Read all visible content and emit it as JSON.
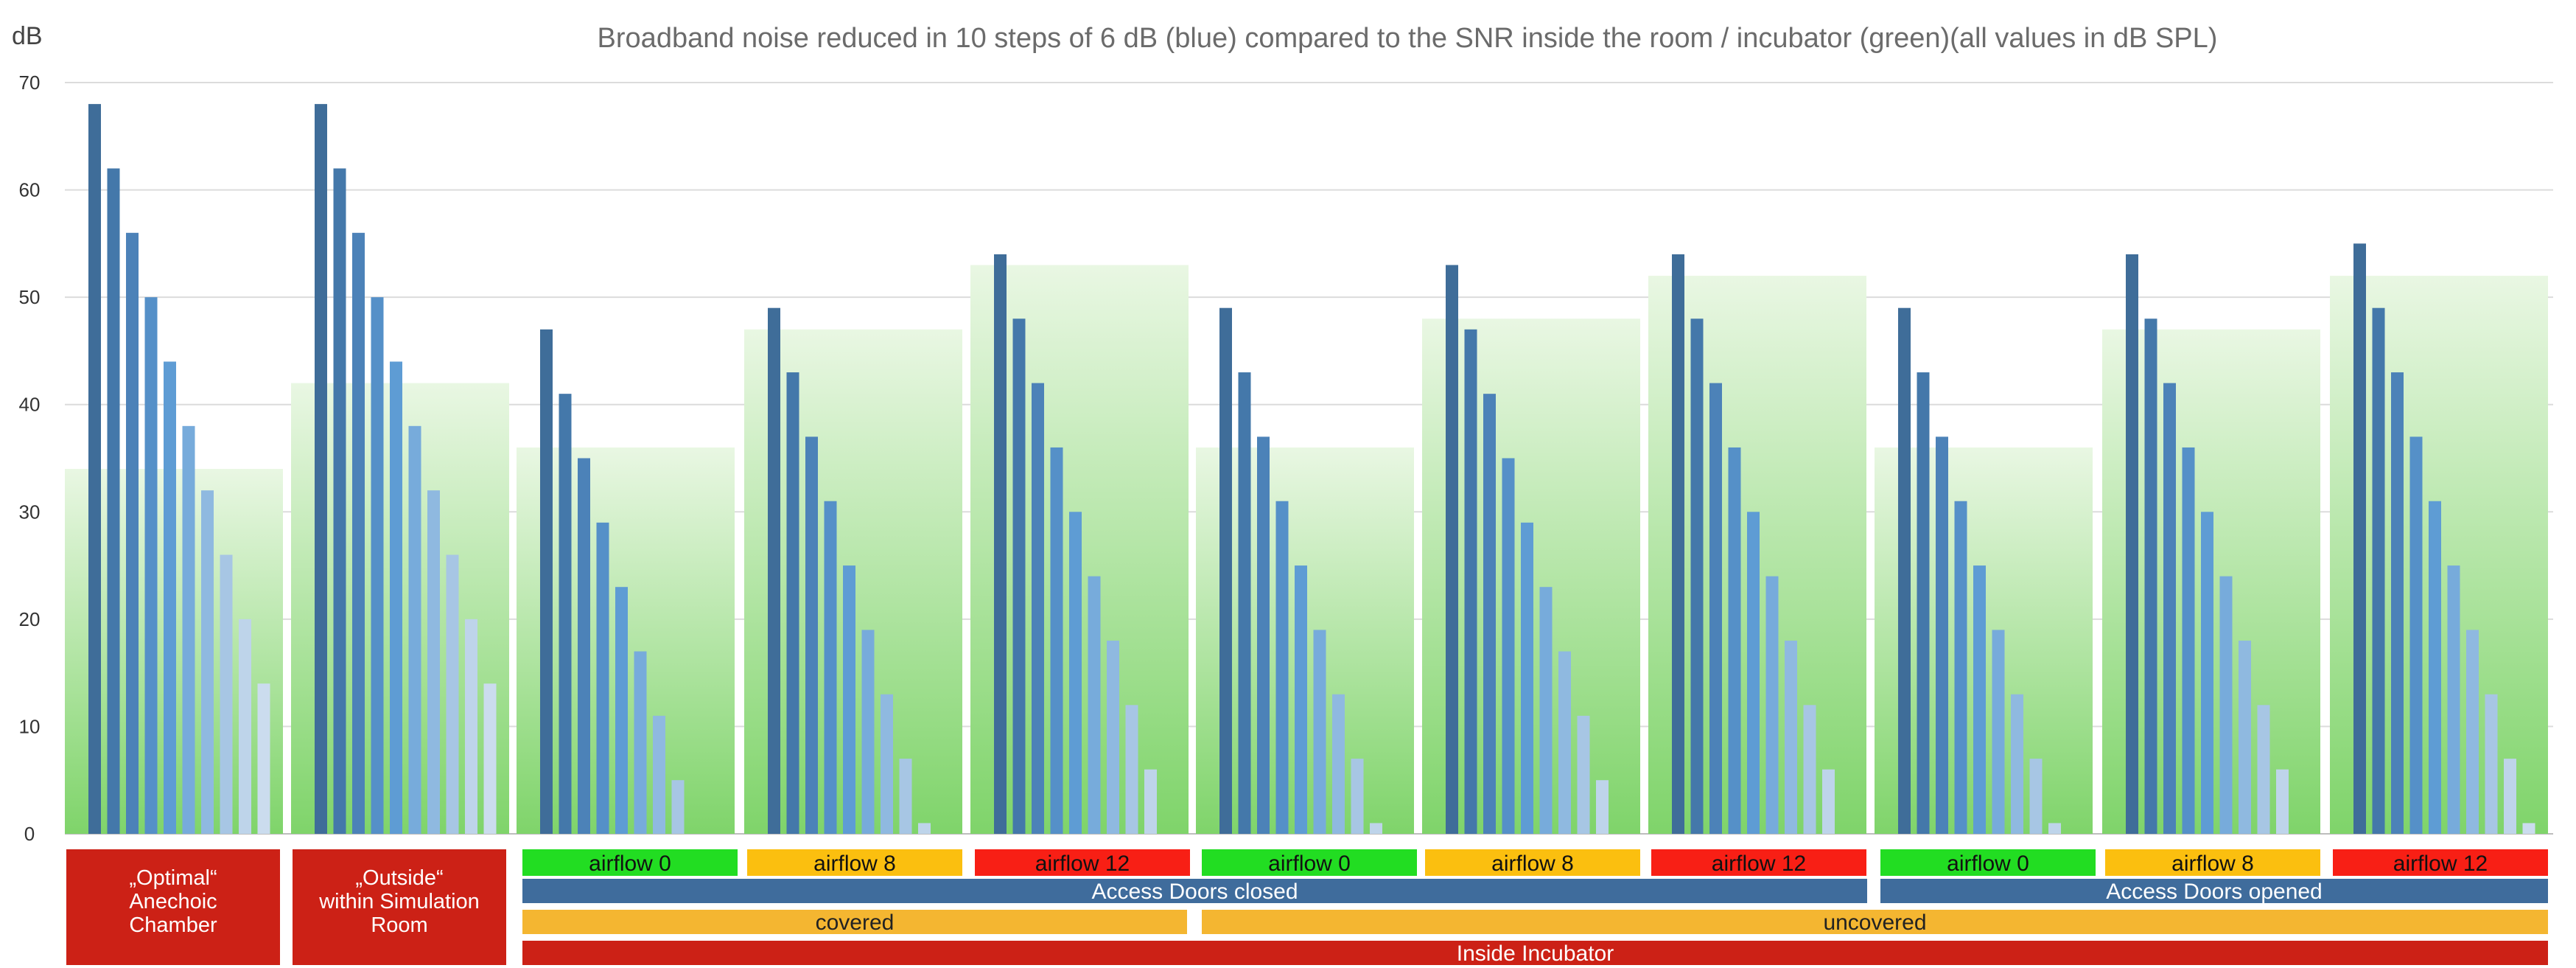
{
  "chart_data": {
    "type": "bar",
    "title": "Broadband noise reduced in 10 steps of 6 dB (blue) compared to the SNR inside the room / incubator (green)(all values in dB SPL)",
    "ylabel": "dB",
    "ylim": [
      0,
      70
    ],
    "yticks": [
      0,
      10,
      20,
      30,
      40,
      50,
      60,
      70
    ],
    "grid": true,
    "series_colors": [
      "#3f6d99",
      "#4478aa",
      "#4c82b8",
      "#5590c8",
      "#5e9cd4",
      "#77abdb",
      "#8fb9e0",
      "#a7c6e4",
      "#bed4ea",
      "#cbdcee"
    ],
    "snr_color": "#7fd46a",
    "groups": [
      {
        "snr": 34,
        "bars": [
          68,
          62,
          56,
          50,
          44,
          38,
          32,
          26,
          20,
          14
        ]
      },
      {
        "snr": 42,
        "bars": [
          68,
          62,
          56,
          50,
          44,
          38,
          32,
          26,
          20,
          14
        ]
      },
      {
        "snr": 36,
        "bars": [
          47,
          41,
          35,
          29,
          23,
          17,
          11,
          5
        ]
      },
      {
        "snr": 47,
        "bars": [
          49,
          43,
          37,
          31,
          25,
          19,
          13,
          7,
          1
        ]
      },
      {
        "snr": 53,
        "bars": [
          54,
          48,
          42,
          36,
          30,
          24,
          18,
          12,
          6
        ]
      },
      {
        "snr": 36,
        "bars": [
          49,
          43,
          37,
          31,
          25,
          19,
          13,
          7,
          1
        ]
      },
      {
        "snr": 48,
        "bars": [
          53,
          47,
          41,
          35,
          29,
          23,
          17,
          11,
          5
        ]
      },
      {
        "snr": 52,
        "bars": [
          54,
          48,
          42,
          36,
          30,
          24,
          18,
          12,
          6
        ]
      },
      {
        "snr": 36,
        "bars": [
          49,
          43,
          37,
          31,
          25,
          19,
          13,
          7,
          1
        ]
      },
      {
        "snr": 47,
        "bars": [
          54,
          48,
          42,
          36,
          30,
          24,
          18,
          12,
          6
        ]
      },
      {
        "snr": 52,
        "bars": [
          55,
          49,
          43,
          37,
          31,
          25,
          19,
          13,
          7,
          1
        ]
      }
    ]
  },
  "categories": {
    "first": [
      "„Optimal“",
      "Anechoic",
      "Chamber"
    ],
    "second": [
      "„Outside“",
      "within Simulation",
      "Room"
    ],
    "color": "#cc2116"
  },
  "airflow_labels": [
    "airflow 0",
    "airflow 8",
    "airflow 12",
    "airflow 0",
    "airflow 8",
    "airflow 12",
    "airflow 0",
    "airflow 8",
    "airflow 12"
  ],
  "airflow_colors": [
    "#22dd22",
    "#fbbf0f",
    "#f81f15"
  ],
  "bands": {
    "access_closed": "Access Doors closed",
    "access_opened": "Access Doors opened",
    "covered": "covered",
    "uncovered": "uncovered",
    "inside": "Inside Incubator",
    "access_color": "#3f6c9c",
    "cover_color": "#f4b631",
    "inside_color": "#cc2116"
  }
}
